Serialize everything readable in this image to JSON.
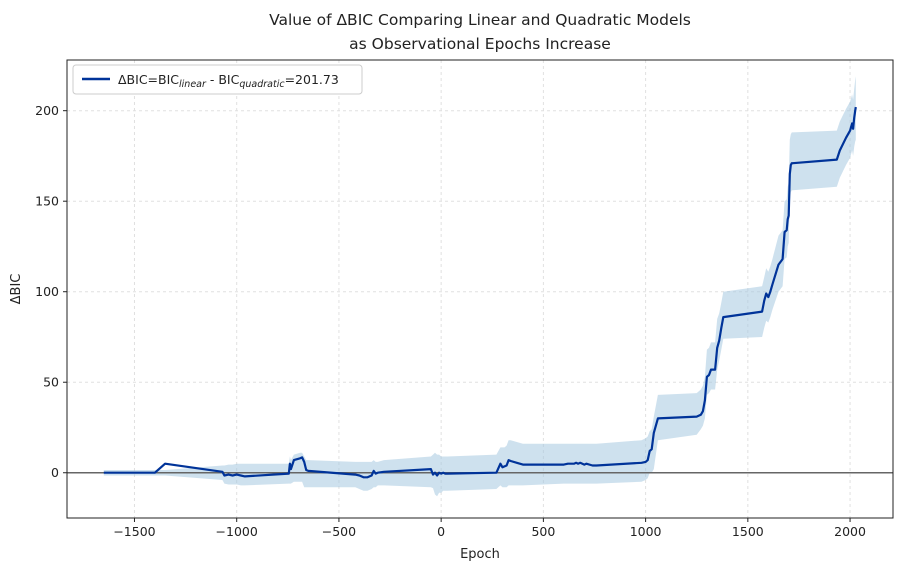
{
  "chart_data": {
    "type": "line",
    "title_line1": "Value of ΔBIC Comparing Linear and Quadratic Models",
    "title_line2": "as Observational Epochs Increase",
    "xlabel": "Epoch",
    "ylabel": "ΔBIC",
    "xlim": [
      -1830,
      2210
    ],
    "ylim": [
      -25,
      228
    ],
    "xticks": [
      -1500,
      -1000,
      -500,
      0,
      500,
      1000,
      1500,
      2000
    ],
    "xtick_labels": [
      "−1500",
      "−1000",
      "−500",
      "0",
      "500",
      "1000",
      "1500",
      "2000"
    ],
    "yticks": [
      0,
      50,
      100,
      150,
      200
    ],
    "ytick_labels": [
      "0",
      "50",
      "100",
      "150",
      "200"
    ],
    "grid": true,
    "legend_position": "top-left",
    "legend": {
      "prefix": "ΔBIC=BIC",
      "sub1": "linear",
      "mid": " - BIC",
      "sub2": "quadratic",
      "suffix": "=201.73"
    },
    "colors": {
      "line": "#003399",
      "band": "#a6c8e0",
      "zero_line": "#666666",
      "grid": "#e0e0e0"
    },
    "reference_line_y": 0,
    "series": [
      {
        "x": [
          -1650,
          -1400,
          -1350,
          -1070,
          -1060,
          -1040,
          -1020,
          -1000,
          -980,
          -960,
          -745,
          -740,
          -735,
          -720,
          -690,
          -680,
          -670,
          -660,
          -650,
          -420,
          -400,
          -380,
          -360,
          -340,
          -330,
          -320,
          -310,
          -280,
          -50,
          -40,
          -30,
          -20,
          -10,
          0,
          10,
          20,
          30,
          270,
          290,
          300,
          310,
          320,
          330,
          340,
          370,
          400,
          600,
          620,
          650,
          660,
          670,
          680,
          700,
          710,
          740,
          760,
          980,
          1000,
          1010,
          1020,
          1030,
          1040,
          1060,
          1250,
          1270,
          1280,
          1290,
          1300,
          1310,
          1320,
          1340,
          1350,
          1360,
          1370,
          1380,
          1570,
          1580,
          1590,
          1600,
          1610,
          1620,
          1650,
          1670,
          1680,
          1690,
          1695,
          1700,
          1705,
          1710,
          1715,
          1720,
          1935,
          1950,
          1980,
          2000,
          2010,
          2015,
          2020,
          2025,
          2028
        ],
        "y": [
          0,
          0,
          5,
          0.5,
          -1.5,
          -1,
          -1.5,
          -1,
          -1.5,
          -2,
          -0.5,
          5,
          2,
          7,
          8,
          8.5,
          6,
          1.5,
          1,
          -1,
          -1.5,
          -2.5,
          -2.5,
          -1.5,
          1,
          -0.5,
          0,
          0.5,
          2,
          -1,
          0,
          -1.5,
          0,
          -0.5,
          0,
          -0.5,
          -0.5,
          0,
          5,
          3,
          3.5,
          4,
          7,
          6.5,
          5.5,
          4.5,
          4.5,
          5,
          5,
          5.5,
          5,
          5.5,
          4.5,
          5,
          4,
          4,
          5.5,
          6,
          7,
          12,
          13,
          22,
          30,
          31,
          32,
          34,
          40,
          53,
          54,
          57,
          57,
          69,
          73,
          80,
          86,
          89,
          95,
          99,
          97,
          100,
          104,
          115,
          118,
          133,
          134,
          140,
          142,
          165,
          170,
          171,
          171,
          173,
          178,
          185,
          189,
          193,
          190,
          196,
          200,
          202
        ],
        "lower": [
          -1.5,
          -1.5,
          -1.5,
          -4,
          -6,
          -6.5,
          -6.5,
          -6.5,
          -7,
          -7,
          -6,
          -6,
          -6,
          -5,
          -5,
          -5,
          -8,
          -8,
          -8,
          -8,
          -9,
          -10,
          -10,
          -9,
          -8,
          -8,
          -7,
          -7,
          -8,
          -8.5,
          -12,
          -13,
          -11,
          -11,
          -10,
          -10,
          -10,
          -9,
          -7,
          -8,
          -8,
          -8,
          -7,
          -7,
          -7,
          -7,
          -6,
          -6,
          -6,
          -6,
          -6,
          -6,
          -6,
          -6,
          -6,
          -6,
          -5,
          -4,
          -3,
          0,
          0,
          2,
          18,
          21,
          24,
          26,
          30,
          43,
          44,
          46,
          46,
          57,
          62,
          68,
          74,
          75,
          80,
          84,
          83,
          86,
          90,
          100,
          103,
          118,
          119,
          125,
          127,
          150,
          155,
          156,
          156,
          158,
          163,
          170,
          174,
          178,
          175,
          180,
          183,
          184
        ],
        "upper": [
          1.5,
          1.5,
          1.5,
          4,
          4,
          4.5,
          4.5,
          5,
          5,
          5,
          5,
          9,
          7,
          10,
          11,
          11,
          9,
          7,
          7,
          6,
          6,
          6,
          6,
          6,
          7,
          6,
          6,
          7,
          9,
          10,
          11,
          10,
          10,
          9,
          9,
          9,
          9,
          10,
          14,
          14,
          14,
          15,
          18,
          18,
          17,
          16,
          16,
          16,
          16,
          16,
          16,
          16,
          16,
          16,
          16,
          16,
          18,
          19,
          20,
          23,
          24,
          31,
          43,
          44,
          46,
          48,
          53,
          68,
          69,
          72,
          72,
          85,
          88,
          94,
          100,
          103,
          108,
          113,
          111,
          114,
          118,
          131,
          134,
          150,
          151,
          158,
          160,
          184,
          187,
          188,
          188,
          189,
          194,
          201,
          205,
          209,
          206,
          212,
          217,
          219
        ]
      }
    ]
  }
}
